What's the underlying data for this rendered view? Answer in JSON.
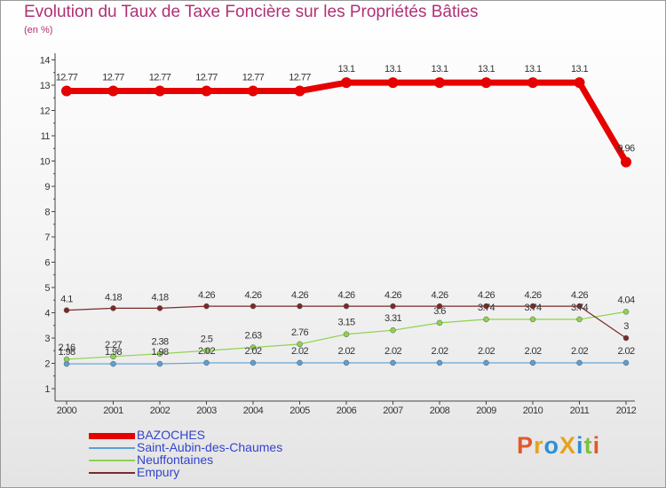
{
  "chart_data": {
    "type": "line",
    "title": "Evolution du Taux de Taxe Foncière sur les Propriétés Bâties",
    "subtitle": "(en %)",
    "x": [
      "2000",
      "2001",
      "2002",
      "2003",
      "2004",
      "2005",
      "2006",
      "2007",
      "2008",
      "2009",
      "2010",
      "2011",
      "2012"
    ],
    "y_ticks": [
      "1",
      "2",
      "3",
      "4",
      "5",
      "6",
      "7",
      "8",
      "9",
      "10",
      "11",
      "12",
      "13",
      "14"
    ],
    "ylim": [
      0.9,
      14
    ],
    "series": [
      {
        "name": "BAZOCHES",
        "color": "#e60000",
        "values": [
          12.77,
          12.77,
          12.77,
          12.77,
          12.77,
          12.77,
          13.1,
          13.1,
          13.1,
          13.1,
          13.1,
          13.1,
          9.96
        ],
        "labels": [
          "12.77",
          "12.77",
          "12.77",
          "12.77",
          "12.77",
          "12.77",
          "13.1",
          "13.1",
          "13.1",
          "13.1",
          "13.1",
          "13.1",
          "9.96"
        ]
      },
      {
        "name": "Saint-Aubin-des-Chaumes",
        "color": "#5a9fd6",
        "values": [
          1.98,
          1.98,
          1.98,
          2.02,
          2.02,
          2.02,
          2.02,
          2.02,
          2.02,
          2.02,
          2.02,
          2.02,
          2.02
        ],
        "labels": [
          "1.98",
          "1.98",
          "1.98",
          "2.02",
          "2.02",
          "2.02",
          "2.02",
          "2.02",
          "2.02",
          "2.02",
          "2.02",
          "2.02",
          "2.02"
        ]
      },
      {
        "name": "Neuffontaines",
        "color": "#8fd24d",
        "values": [
          2.16,
          2.27,
          2.38,
          2.5,
          2.63,
          2.76,
          3.15,
          3.31,
          3.6,
          3.74,
          3.74,
          3.74,
          4.04
        ],
        "labels": [
          "2.16",
          "2.27",
          "2.38",
          "2.5",
          "2.63",
          "2.76",
          "3.15",
          "3.31",
          "3.6",
          "3.74",
          "3.74",
          "3.74",
          "4.04"
        ]
      },
      {
        "name": "Empury",
        "color": "#7a2a2a",
        "values": [
          4.1,
          4.18,
          4.18,
          4.26,
          4.26,
          4.26,
          4.26,
          4.26,
          4.26,
          4.26,
          4.26,
          4.26,
          3
        ],
        "labels": [
          "4.1",
          "4.18",
          "4.18",
          "4.26",
          "4.26",
          "4.26",
          "4.26",
          "4.26",
          "4.26",
          "4.26",
          "4.26",
          "4.26",
          "3"
        ]
      }
    ]
  },
  "logo": {
    "text": "ProXiti",
    "letters": [
      {
        "ch": "P",
        "color": "#e2582b"
      },
      {
        "ch": "r",
        "color": "#e6a21e"
      },
      {
        "ch": "o",
        "color": "#2b8fd6"
      },
      {
        "ch": "X",
        "color": "#e6a21e"
      },
      {
        "ch": "i",
        "color": "#2b8fd6"
      },
      {
        "ch": "t",
        "color": "#7cc142"
      },
      {
        "ch": "i",
        "color": "#e2582b"
      }
    ]
  }
}
